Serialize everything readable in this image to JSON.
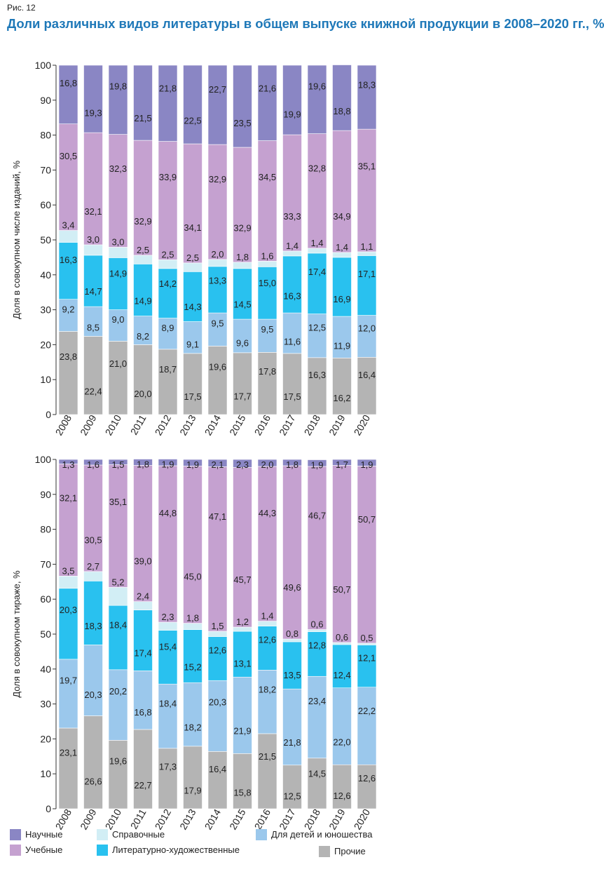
{
  "figure_label": "Рис. 12",
  "title": "Доли различных видов литературы в общем выпуске книжной продукции в 2008–2020 гг., %",
  "colors": {
    "Научные": "#8a86c4",
    "Учебные": "#c5a1d0",
    "Справочные": "#d2eef5",
    "Литературно-художественные": "#29c1ef",
    "Для детей и юношества": "#9bc8ec",
    "Прочие": "#b4b4b4"
  },
  "legend": [
    {
      "label": "Научные",
      "color": "#8a86c4"
    },
    {
      "label": "Справочные",
      "color": "#d2eef5"
    },
    {
      "label": "Для детей и юношества",
      "color": "#9bc8ec"
    },
    {
      "label": "Учебные",
      "color": "#c5a1d0"
    },
    {
      "label": "Литературно-художественные",
      "color": "#29c1ef"
    },
    {
      "label": "Прочие",
      "color": "#b4b4b4"
    }
  ],
  "chart_data": [
    {
      "type": "bar",
      "stacked": true,
      "ylabel": "Доля в совокупном числе изданий, %",
      "ylim": [
        0,
        100
      ],
      "yticks": [
        0,
        10,
        20,
        30,
        40,
        50,
        60,
        70,
        80,
        90,
        100
      ],
      "categories": [
        "2008",
        "2009",
        "2010",
        "2011",
        "2012",
        "2013",
        "2014",
        "2015",
        "2016",
        "2017",
        "2018",
        "2019",
        "2020"
      ],
      "series": [
        {
          "name": "Прочие",
          "values": [
            23.8,
            22.4,
            21.0,
            20.0,
            18.7,
            17.5,
            19.6,
            17.7,
            17.8,
            17.5,
            16.3,
            16.2,
            16.4
          ]
        },
        {
          "name": "Для детей и юношества",
          "values": [
            9.2,
            8.5,
            9.0,
            8.2,
            8.9,
            9.1,
            9.5,
            9.6,
            9.5,
            11.6,
            12.5,
            11.9,
            12.0
          ]
        },
        {
          "name": "Литературно-художественные",
          "values": [
            16.3,
            14.7,
            14.9,
            14.9,
            14.2,
            14.3,
            13.3,
            14.5,
            15.0,
            16.3,
            17.4,
            16.9,
            17.1
          ]
        },
        {
          "name": "Справочные",
          "values": [
            3.4,
            3.0,
            3.0,
            2.5,
            2.5,
            2.5,
            2.0,
            1.8,
            1.6,
            1.4,
            1.4,
            1.4,
            1.1
          ]
        },
        {
          "name": "Учебные",
          "values": [
            30.5,
            32.1,
            32.3,
            32.9,
            33.9,
            34.1,
            32.9,
            32.9,
            34.5,
            33.3,
            32.8,
            34.9,
            35.1
          ]
        },
        {
          "name": "Научные",
          "values": [
            16.8,
            19.3,
            19.8,
            21.5,
            21.8,
            22.5,
            22.7,
            23.5,
            21.6,
            19.9,
            19.6,
            18.8,
            18.3
          ]
        }
      ]
    },
    {
      "type": "bar",
      "stacked": true,
      "ylabel": "Доля в совокупном тираже, %",
      "ylim": [
        0,
        100
      ],
      "yticks": [
        0,
        10,
        20,
        30,
        40,
        50,
        60,
        70,
        80,
        90,
        100
      ],
      "categories": [
        "2008",
        "2009",
        "2010",
        "2011",
        "2012",
        "2013",
        "2014",
        "2015",
        "2016",
        "2017",
        "2018",
        "2019",
        "2020"
      ],
      "series": [
        {
          "name": "Прочие",
          "values": [
            23.1,
            26.6,
            19.6,
            22.7,
            17.3,
            17.9,
            16.4,
            15.8,
            21.5,
            12.5,
            14.5,
            12.6,
            12.6
          ]
        },
        {
          "name": "Для детей и юношества",
          "values": [
            19.7,
            20.3,
            20.2,
            16.8,
            18.4,
            18.2,
            20.3,
            21.9,
            18.2,
            21.8,
            23.4,
            22.0,
            22.2
          ]
        },
        {
          "name": "Литературно-художественные",
          "values": [
            20.3,
            18.3,
            18.4,
            17.4,
            15.4,
            15.2,
            12.6,
            13.1,
            12.6,
            13.5,
            12.8,
            12.4,
            12.1
          ]
        },
        {
          "name": "Справочные",
          "values": [
            3.5,
            2.7,
            5.2,
            2.4,
            2.3,
            1.8,
            1.5,
            1.2,
            1.4,
            0.8,
            0.6,
            0.6,
            0.5
          ]
        },
        {
          "name": "Учебные",
          "values": [
            32.1,
            30.5,
            35.1,
            39.0,
            44.8,
            45.0,
            47.1,
            45.7,
            44.3,
            49.6,
            46.7,
            50.7,
            50.7
          ]
        },
        {
          "name": "Научные",
          "values": [
            1.3,
            1.6,
            1.5,
            1.8,
            1.9,
            1.9,
            2.1,
            2.3,
            2.0,
            1.8,
            1.9,
            1.7,
            1.9
          ]
        }
      ]
    }
  ]
}
